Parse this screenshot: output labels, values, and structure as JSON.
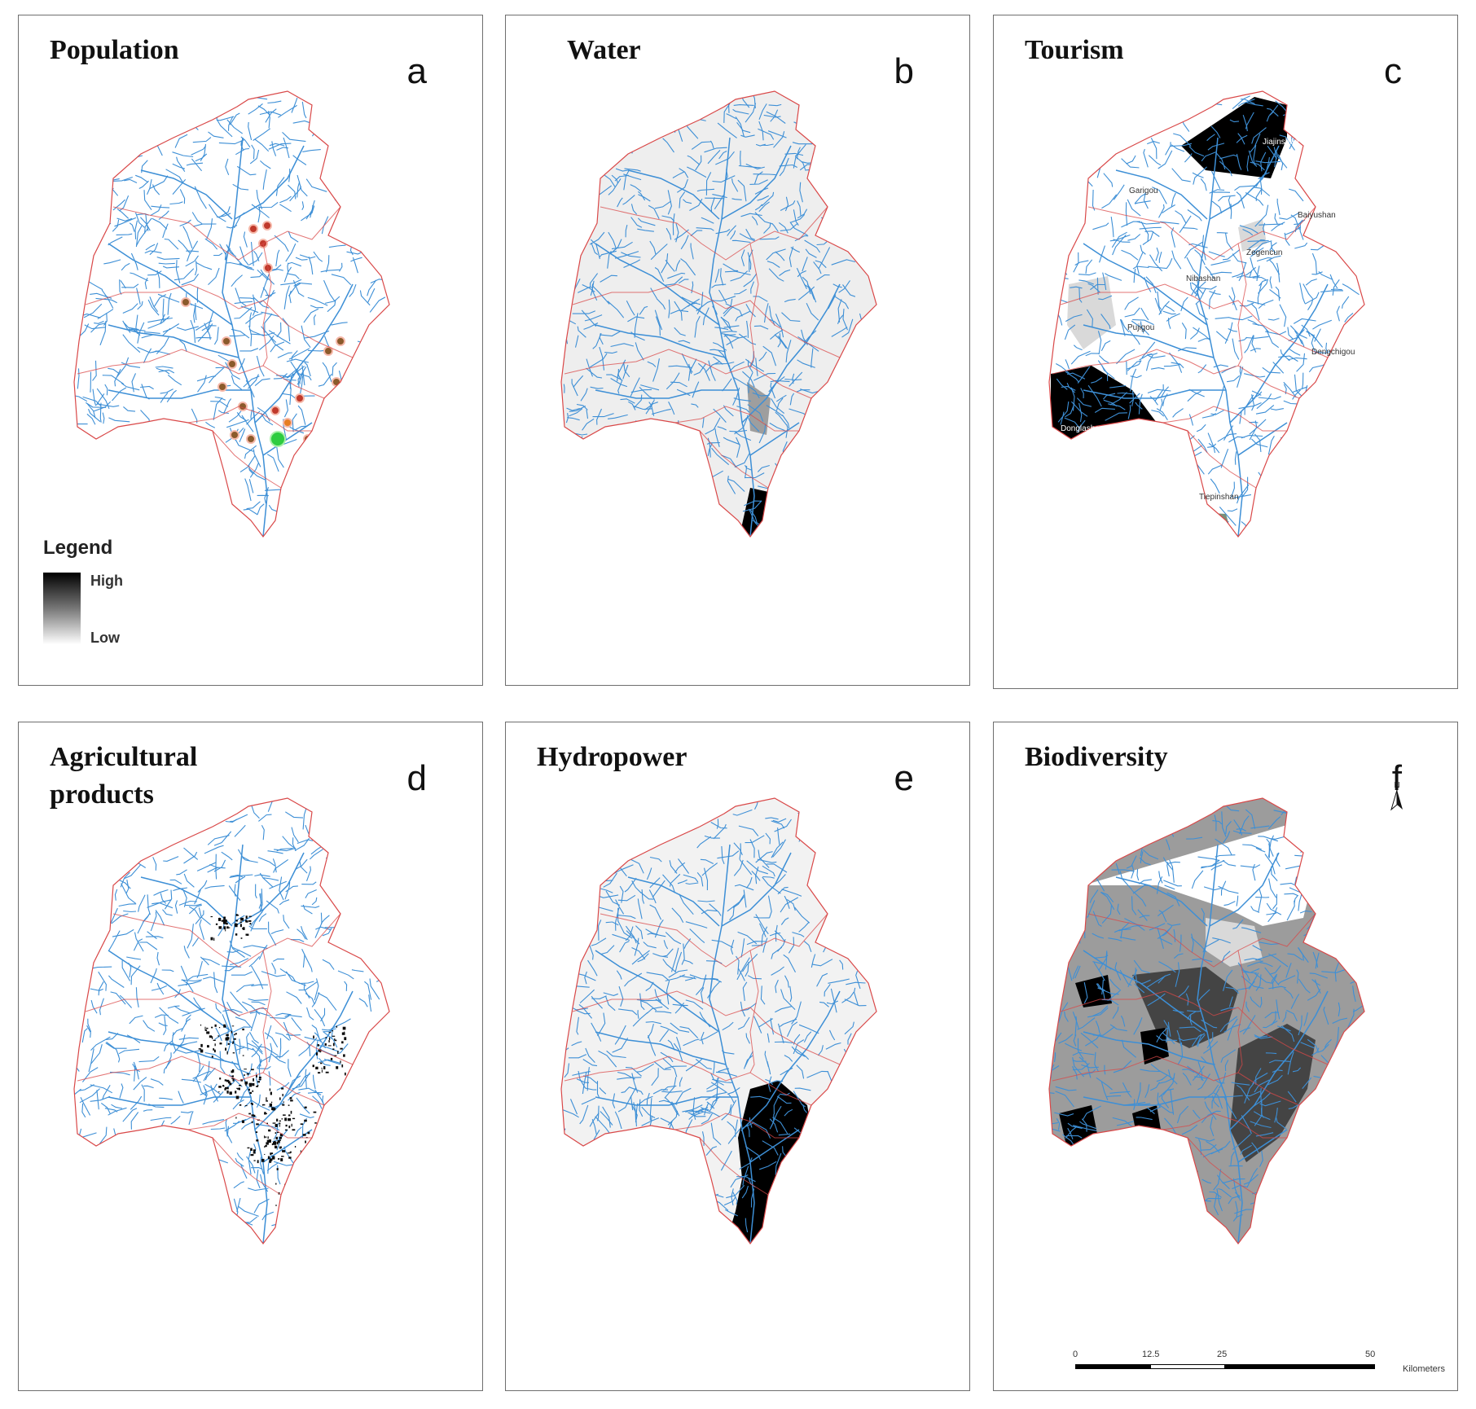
{
  "panels": [
    {
      "id": "a",
      "title": "Population",
      "letter": "a"
    },
    {
      "id": "b",
      "title": "Water",
      "letter": "b"
    },
    {
      "id": "c",
      "title": "Tourism",
      "letter": "c"
    },
    {
      "id": "d",
      "title": "Agricultural products",
      "letter": "d"
    },
    {
      "id": "e",
      "title": "Hydropower",
      "letter": "e"
    },
    {
      "id": "f",
      "title": "Biodiversity",
      "letter": "f"
    }
  ],
  "legend": {
    "title": "Legend",
    "high": "High",
    "low": "Low"
  },
  "tourism_places": {
    "jiajinshan": "Jiajinshan",
    "garigou": "Garigou",
    "baiyushan": "Baiyushan",
    "zegencun": "Zegencun",
    "nibashan": "Nibashan",
    "pujigou": "Pujigou",
    "dengchigou": "Dengchigou",
    "donglashan": "Donglashan",
    "tiepinshan": "Tiepinshan"
  },
  "north_arrow": "N",
  "scale_bar": {
    "ticks": [
      "0",
      "12.5",
      "25",
      "50"
    ],
    "unit": "Kilometers"
  },
  "colors": {
    "river": "#3d8fd6",
    "boundary": "#d94848",
    "high": "#000000",
    "low": "#ffffff"
  }
}
